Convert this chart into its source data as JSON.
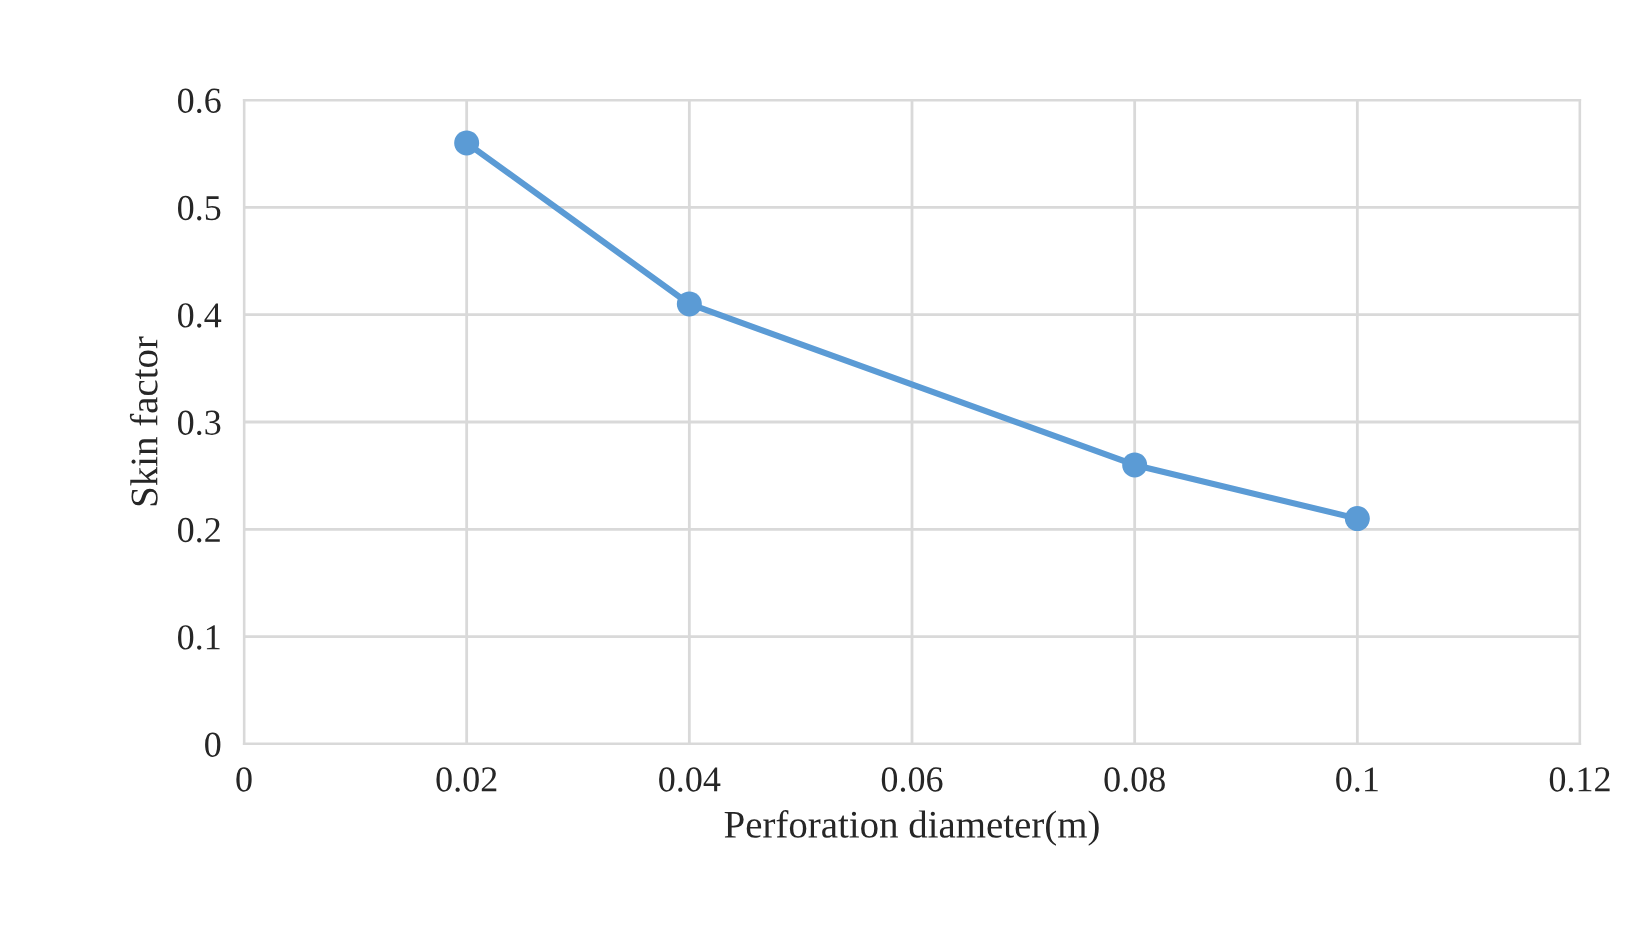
{
  "chart_data": {
    "type": "line",
    "xlabel": "Perforation diameter(m)",
    "ylabel": "Skin factor",
    "x": [
      0.02,
      0.04,
      0.08,
      0.1
    ],
    "series": [
      {
        "color": "#5b9bd5",
        "values": [
          0.56,
          0.41,
          0.26,
          0.21
        ]
      }
    ],
    "xlim": [
      0,
      0.12
    ],
    "xticks": [
      0,
      0.02,
      0.04,
      0.06,
      0.08,
      0.1,
      0.12
    ],
    "ylim": [
      0,
      0.6
    ],
    "yticks": [
      0,
      0.1,
      0.2,
      0.3,
      0.4,
      0.5,
      0.6
    ],
    "grid": true,
    "marker": "circle",
    "line_style": "solid"
  }
}
